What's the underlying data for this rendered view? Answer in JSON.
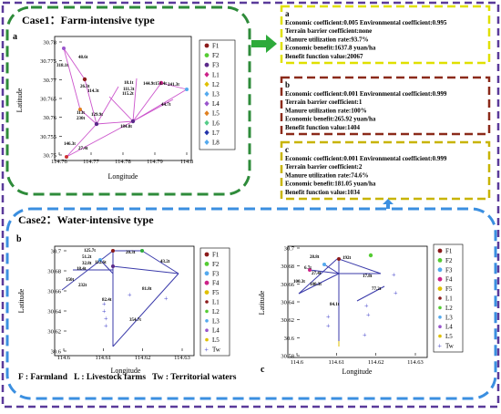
{
  "case1": {
    "title": "Case1：Farm-intensive type",
    "panel_letter": "a",
    "xlabel": "Longitude",
    "ylabel": "Latitude",
    "xticks": [
      "114.76",
      "114.77",
      "114.78",
      "114.79",
      "114.8"
    ],
    "yticks": [
      "30.78",
      "30.775",
      "30.77",
      "30.765",
      "30.76",
      "30.755",
      "30.75"
    ],
    "legend": [
      "F1",
      "F2",
      "F3",
      "L1",
      "L2",
      "L3",
      "L4",
      "L5",
      "L6",
      "L7",
      "L8"
    ],
    "route_labels": [
      "318.1t",
      "48.6t",
      "26.3t",
      "114.3t",
      "113t",
      "129.9t",
      "230t",
      "18.1t",
      "111.3t",
      "115.2t",
      "144.9t",
      "151.4t",
      "241.3t",
      "44.7t",
      "184.8t",
      "146.3t",
      "27.4t"
    ],
    "colors": {
      "frame": "#2e8b3a",
      "route": "#cc55cc"
    }
  },
  "case2": {
    "title": "Case2：Water-intensive type",
    "xlabel": "Longitude",
    "ylabel": "Latitude",
    "colors": {
      "frame": "#3b8fe0",
      "route": "#3a3aaa",
      "tw": "#4848cc"
    },
    "legend": [
      "F1",
      "F2",
      "F3",
      "F4",
      "F5",
      "L1",
      "L2",
      "L3",
      "L4",
      "L5",
      "Tw"
    ],
    "footer": "F : Farmland   L : Livestock farms   Tw : Territorial waters",
    "panel_b": {
      "letter": "b",
      "xticks": [
        "114.6",
        "114.61",
        "114.62",
        "114.63"
      ],
      "yticks": [
        "30.7",
        "30.68",
        "30.66",
        "30.64",
        "30.62",
        "30.6"
      ],
      "route_labels": [
        "125.7t",
        "51.2t",
        "32.8t",
        "18.4t",
        "112.6t",
        "150t",
        "232t",
        "20.3t",
        "43.2t",
        "81.8t",
        "82.4t",
        "354.7t"
      ]
    },
    "panel_c": {
      "letter": "c",
      "xticks": [
        "114.6",
        "114.61",
        "114.62",
        "114.63"
      ],
      "yticks": [
        "30.7",
        "30.68",
        "30.66",
        "30.64",
        "30.62",
        "30.6",
        "30.58"
      ],
      "route_labels": [
        "28.8t",
        "192t",
        "6.7t",
        "27.4t",
        "17.8t",
        "180.3t",
        "77.2t",
        "100.3t",
        "84.1t"
      ]
    }
  },
  "info_boxes": [
    {
      "letter": "a",
      "color": "#e0e000",
      "lines": [
        "Economic coefficient:0.005    Environmental coefficient:0.995",
        "Terrain barrier coefficient:none",
        "Manure utilization rate:93.7%",
        "Economic benefit:1637.8 yuan/ha",
        "Benefit function value:20067"
      ]
    },
    {
      "letter": "b",
      "color": "#8b2a1a",
      "lines": [
        "Economic coefficient:0.001    Environmental coefficient:0.999",
        "Terrain barrier coefficient:1",
        "Manure utilization rate:100%",
        "Economic benefit:265.92 yuan/ha",
        "Benefit function value:1404"
      ]
    },
    {
      "letter": "c",
      "color": "#c8b400",
      "lines": [
        "Economic coefficient:0.001    Environmental coefficient:0.999",
        "Terrain barrier coefficient:2",
        "Manure utilization rate:74.6%",
        "Economic benefit:181.05 yuan/ha",
        "Benefit function value:1034"
      ]
    }
  ],
  "outer_color": "#5a3a9a"
}
